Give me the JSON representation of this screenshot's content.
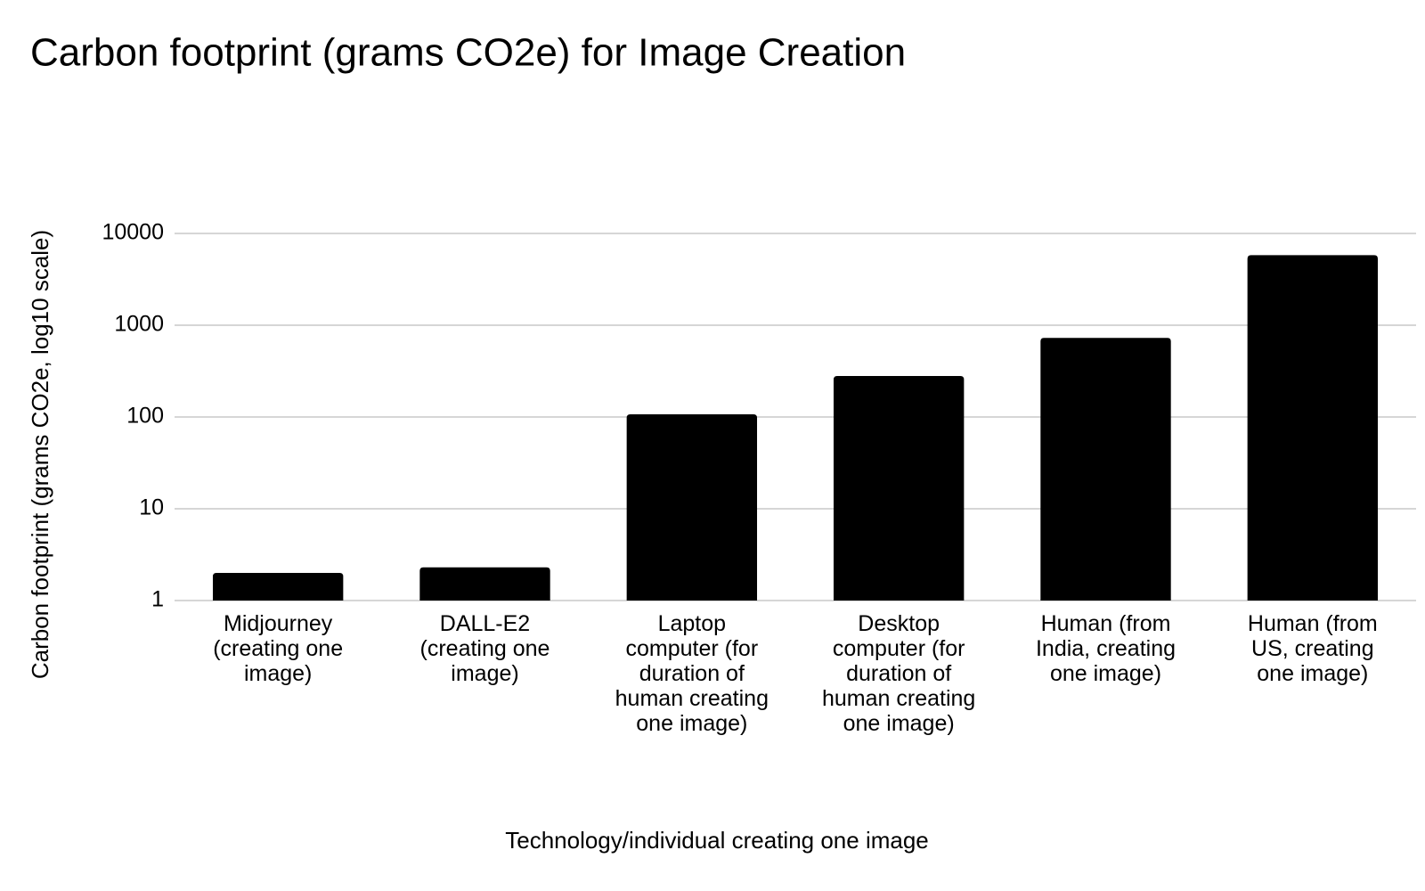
{
  "chart_data": {
    "type": "bar",
    "title": "Carbon footprint (grams CO2e) for Image Creation",
    "x_label": "Technology/individual creating one image",
    "y_label": "Carbon footprint (grams CO2e, log10 scale)",
    "categories": [
      "Midjourney (creating one image)",
      "DALL-E2 (creating one image)",
      "Laptop computer (for duration of human creating one image)",
      "Desktop computer (for duration of human creating one image)",
      "Human (from India, creating one image)",
      "Human (from US, creating one image)"
    ],
    "values": [
      2.0,
      2.3,
      107,
      280,
      727,
      5800
    ],
    "color": "#000000",
    "log_scale": true,
    "ylim": [
      1,
      10000
    ],
    "yticks": [
      1,
      10,
      100,
      1000,
      10000
    ],
    "grid": true
  }
}
